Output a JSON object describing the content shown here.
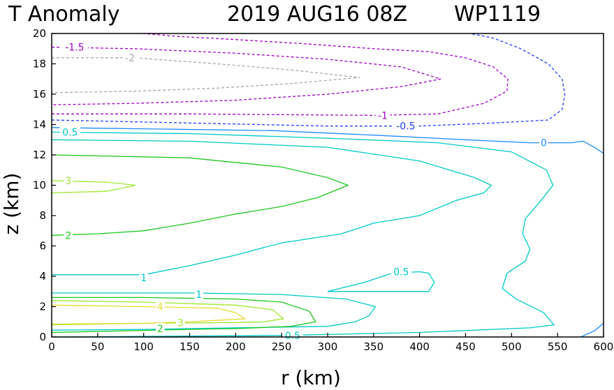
{
  "header": {
    "field": "T Anomaly",
    "datetime": "2019 AUG16 08Z",
    "storm_id": "WP1119"
  },
  "chart_data": {
    "type": "contour",
    "title": "T Anomaly",
    "xlabel": "r (km)",
    "ylabel": "z (km)",
    "xlim": [
      0,
      600
    ],
    "ylim": [
      0,
      20
    ],
    "xticks": [
      0,
      50,
      100,
      150,
      200,
      250,
      300,
      350,
      400,
      450,
      500,
      550,
      600
    ],
    "yticks": [
      0,
      2,
      4,
      6,
      8,
      10,
      12,
      14,
      16,
      18,
      20
    ],
    "grid": false,
    "colors": {
      "neg2": "#a8a8a8",
      "neg1_5": "#a000c8",
      "neg1": "#a000c8",
      "neg0_5": "#1e3cff",
      "zero": "#1e8cff",
      "pos0_5": "#00c8c8",
      "pos1": "#00c8c8",
      "pos2": "#1ec81e",
      "pos3": "#a0e632",
      "pos4": "#e6dc32"
    },
    "contours": [
      {
        "level": -2,
        "color_key": "neg2",
        "dashed": true,
        "points": [
          [
            0,
            18.4
          ],
          [
            90,
            18.4
          ],
          [
            180,
            18.0
          ],
          [
            260,
            17.6
          ],
          [
            335,
            17.1
          ],
          [
            260,
            16.7
          ],
          [
            180,
            16.4
          ],
          [
            90,
            16.2
          ],
          [
            0,
            16.1
          ]
        ]
      },
      {
        "level": -1.5,
        "color_key": "neg1_5",
        "dashed": true,
        "points": [
          [
            0,
            19.1
          ],
          [
            90,
            19.0
          ],
          [
            200,
            18.7
          ],
          [
            300,
            18.3
          ],
          [
            380,
            17.8
          ],
          [
            423,
            17.0
          ],
          [
            380,
            16.5
          ],
          [
            300,
            16.0
          ],
          [
            200,
            15.6
          ],
          [
            90,
            15.4
          ],
          [
            0,
            15.3
          ]
        ]
      },
      {
        "level": -1,
        "color_key": "neg1",
        "dashed": true,
        "points": [
          [
            0,
            14.7
          ],
          [
            150,
            14.7
          ],
          [
            350,
            14.6
          ],
          [
            420,
            14.7
          ],
          [
            470,
            15.4
          ],
          [
            495,
            16.2
          ],
          [
            496,
            17.0
          ],
          [
            480,
            17.8
          ],
          [
            450,
            18.4
          ],
          [
            410,
            18.8
          ],
          [
            350,
            19.0
          ],
          [
            280,
            19.3
          ],
          [
            200,
            19.6
          ],
          [
            140,
            19.8
          ],
          [
            100,
            20.0
          ]
        ]
      },
      {
        "level": -0.5,
        "color_key": "neg0_5",
        "dashed": true,
        "points": [
          [
            0,
            14.3
          ],
          [
            150,
            14.1
          ],
          [
            300,
            13.9
          ],
          [
            400,
            13.9
          ],
          [
            480,
            14.1
          ],
          [
            540,
            14.3
          ],
          [
            555,
            15.0
          ],
          [
            558,
            16.0
          ],
          [
            555,
            17.0
          ],
          [
            540,
            18.0
          ],
          [
            510,
            19.0
          ],
          [
            480,
            19.7
          ],
          [
            455,
            20.0
          ]
        ]
      },
      {
        "level": 0,
        "color_key": "zero",
        "dashed": false,
        "points": [
          [
            0,
            13.8
          ],
          [
            120,
            13.7
          ],
          [
            240,
            13.6
          ],
          [
            350,
            13.3
          ],
          [
            450,
            13.0
          ],
          [
            520,
            12.8
          ],
          [
            565,
            12.8
          ],
          [
            578,
            12.9
          ],
          [
            590,
            12.5
          ],
          [
            600,
            12.1
          ]
        ]
      },
      {
        "level": 0,
        "color_key": "zero",
        "dashed": false,
        "points": [
          [
            575,
            0
          ],
          [
            590,
            0.4
          ],
          [
            600,
            0.9
          ]
        ]
      },
      {
        "level": 0.5,
        "color_key": "pos0_5",
        "dashed": false,
        "points": [
          [
            0,
            13.5
          ],
          [
            150,
            13.4
          ],
          [
            300,
            13.1
          ],
          [
            420,
            12.8
          ],
          [
            500,
            12.2
          ],
          [
            538,
            11.0
          ],
          [
            545,
            10.0
          ],
          [
            532,
            9.0
          ],
          [
            515,
            7.8
          ],
          [
            512,
            6.8
          ],
          [
            520,
            5.8
          ],
          [
            515,
            5.0
          ],
          [
            495,
            4.2
          ],
          [
            490,
            3.2
          ],
          [
            505,
            2.5
          ],
          [
            535,
            1.6
          ],
          [
            546,
            0.8
          ],
          [
            520,
            0.6
          ],
          [
            400,
            0.3
          ],
          [
            250,
            0.1
          ],
          [
            0,
            0.0
          ]
        ]
      },
      {
        "level": 0.5,
        "color_key": "pos0_5",
        "dashed": false,
        "points": [
          [
            300,
            3.0
          ],
          [
            340,
            3.6
          ],
          [
            370,
            4.2
          ],
          [
            400,
            4.3
          ],
          [
            410,
            4.2
          ],
          [
            416,
            3.6
          ],
          [
            410,
            3.0
          ],
          [
            380,
            3.0
          ],
          [
            340,
            3.0
          ],
          [
            300,
            3.0
          ]
        ]
      },
      {
        "level": 1,
        "color_key": "pos1",
        "dashed": false,
        "points": [
          [
            0,
            13.0
          ],
          [
            150,
            12.9
          ],
          [
            300,
            12.5
          ],
          [
            400,
            11.6
          ],
          [
            460,
            10.5
          ],
          [
            478,
            10.0
          ],
          [
            470,
            9.5
          ],
          [
            440,
            9.0
          ],
          [
            400,
            8.0
          ],
          [
            350,
            7.5
          ],
          [
            315,
            6.8
          ],
          [
            250,
            6.2
          ],
          [
            200,
            5.4
          ],
          [
            150,
            4.7
          ],
          [
            100,
            4.1
          ],
          [
            0,
            4.1
          ]
        ]
      },
      {
        "level": 1,
        "color_key": "pos1",
        "dashed": false,
        "points": [
          [
            0,
            2.9
          ],
          [
            150,
            2.9
          ],
          [
            250,
            2.8
          ],
          [
            320,
            2.5
          ],
          [
            352,
            2.0
          ],
          [
            345,
            1.4
          ],
          [
            330,
            1.0
          ],
          [
            300,
            0.7
          ],
          [
            200,
            0.6
          ],
          [
            100,
            0.5
          ],
          [
            0,
            0.45
          ]
        ]
      },
      {
        "level": 2,
        "color_key": "pos2",
        "dashed": false,
        "points": [
          [
            0,
            12.0
          ],
          [
            150,
            11.8
          ],
          [
            250,
            11.2
          ],
          [
            300,
            10.5
          ],
          [
            322,
            10.0
          ],
          [
            290,
            9.2
          ],
          [
            250,
            8.6
          ],
          [
            200,
            8.1
          ],
          [
            150,
            7.5
          ],
          [
            100,
            7.0
          ],
          [
            50,
            6.8
          ],
          [
            0,
            6.7
          ]
        ]
      },
      {
        "level": 2,
        "color_key": "pos2",
        "dashed": false,
        "points": [
          [
            0,
            2.6
          ],
          [
            100,
            2.6
          ],
          [
            200,
            2.5
          ],
          [
            250,
            2.3
          ],
          [
            280,
            1.7
          ],
          [
            287,
            1.0
          ],
          [
            260,
            0.7
          ],
          [
            200,
            0.55
          ],
          [
            150,
            0.5
          ],
          [
            0,
            0.3
          ]
        ]
      },
      {
        "level": 3,
        "color_key": "pos3",
        "dashed": false,
        "points": [
          [
            0,
            10.3
          ],
          [
            60,
            10.2
          ],
          [
            91,
            10.0
          ],
          [
            60,
            9.6
          ],
          [
            0,
            9.5
          ]
        ]
      },
      {
        "level": 3,
        "color_key": "pos3",
        "dashed": false,
        "points": [
          [
            0,
            2.4
          ],
          [
            100,
            2.3
          ],
          [
            200,
            2.1
          ],
          [
            240,
            1.8
          ],
          [
            252,
            1.2
          ],
          [
            230,
            1.0
          ],
          [
            200,
            0.95
          ],
          [
            100,
            0.9
          ],
          [
            0,
            0.8
          ]
        ]
      },
      {
        "level": 4,
        "color_key": "pos4",
        "dashed": false,
        "points": [
          [
            0,
            2.1
          ],
          [
            100,
            2.0
          ],
          [
            180,
            1.9
          ],
          [
            200,
            1.6
          ],
          [
            210,
            1.2
          ],
          [
            150,
            1.0
          ],
          [
            100,
            0.9
          ],
          [
            0,
            0.85
          ]
        ]
      }
    ],
    "labels": [
      {
        "text": "-2",
        "x": 85,
        "y": 18.4,
        "color_key": "neg2"
      },
      {
        "text": "-1.5",
        "x": 25,
        "y": 19.1,
        "color_key": "neg1_5"
      },
      {
        "text": "-1",
        "x": 360,
        "y": 14.6,
        "color_key": "neg1"
      },
      {
        "text": "-0.5",
        "x": 385,
        "y": 13.9,
        "color_key": "neg0_5"
      },
      {
        "text": "0",
        "x": 535,
        "y": 12.8,
        "color_key": "zero"
      },
      {
        "text": "0.5",
        "x": 20,
        "y": 13.5,
        "color_key": "pos0_5"
      },
      {
        "text": "0.5",
        "x": 380,
        "y": 4.3,
        "color_key": "pos0_5"
      },
      {
        "text": "0.5",
        "x": 262,
        "y": 0.1,
        "color_key": "pos0_5"
      },
      {
        "text": "1",
        "x": 100,
        "y": 3.9,
        "color_key": "pos1"
      },
      {
        "text": "1",
        "x": 160,
        "y": 2.8,
        "color_key": "pos1"
      },
      {
        "text": "2",
        "x": 18,
        "y": 6.7,
        "color_key": "pos2"
      },
      {
        "text": "2",
        "x": 118,
        "y": 0.55,
        "color_key": "pos2"
      },
      {
        "text": "3",
        "x": 18,
        "y": 10.3,
        "color_key": "pos3"
      },
      {
        "text": "3",
        "x": 140,
        "y": 0.95,
        "color_key": "pos3"
      },
      {
        "text": "4",
        "x": 118,
        "y": 2.0,
        "color_key": "pos4"
      }
    ]
  }
}
